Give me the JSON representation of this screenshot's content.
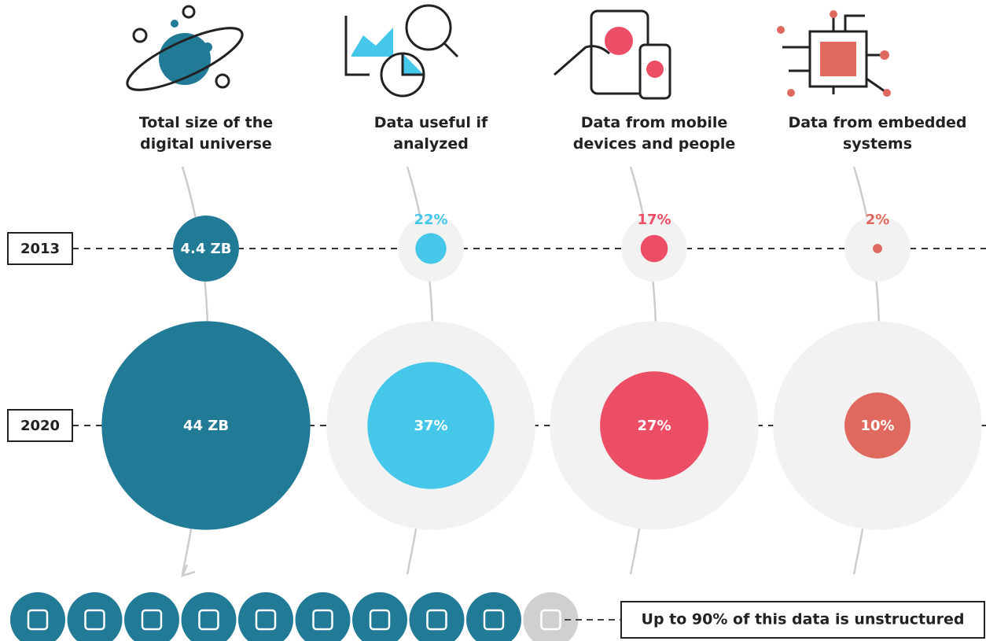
{
  "chart_data": {
    "type": "bubble",
    "categories": [
      "Total size of the digital universe",
      "Data useful if analyzed",
      "Data from mobile devices and people",
      "Data from embedded systems"
    ],
    "colors": [
      "#217a96",
      "#45c7ea",
      "#ec4e66",
      "#e0695f"
    ],
    "series": [
      {
        "name": "2013",
        "values": [
          4.4,
          22,
          17,
          2
        ],
        "value_labels": [
          "4.4 ZB",
          "22%",
          "17%",
          "2%"
        ]
      },
      {
        "name": "2020",
        "values": [
          44,
          37,
          27,
          10
        ],
        "value_labels": [
          "44 ZB",
          "37%",
          "27%",
          "10%"
        ]
      }
    ],
    "note": "Up to 90% of this data is unstructured"
  }
}
